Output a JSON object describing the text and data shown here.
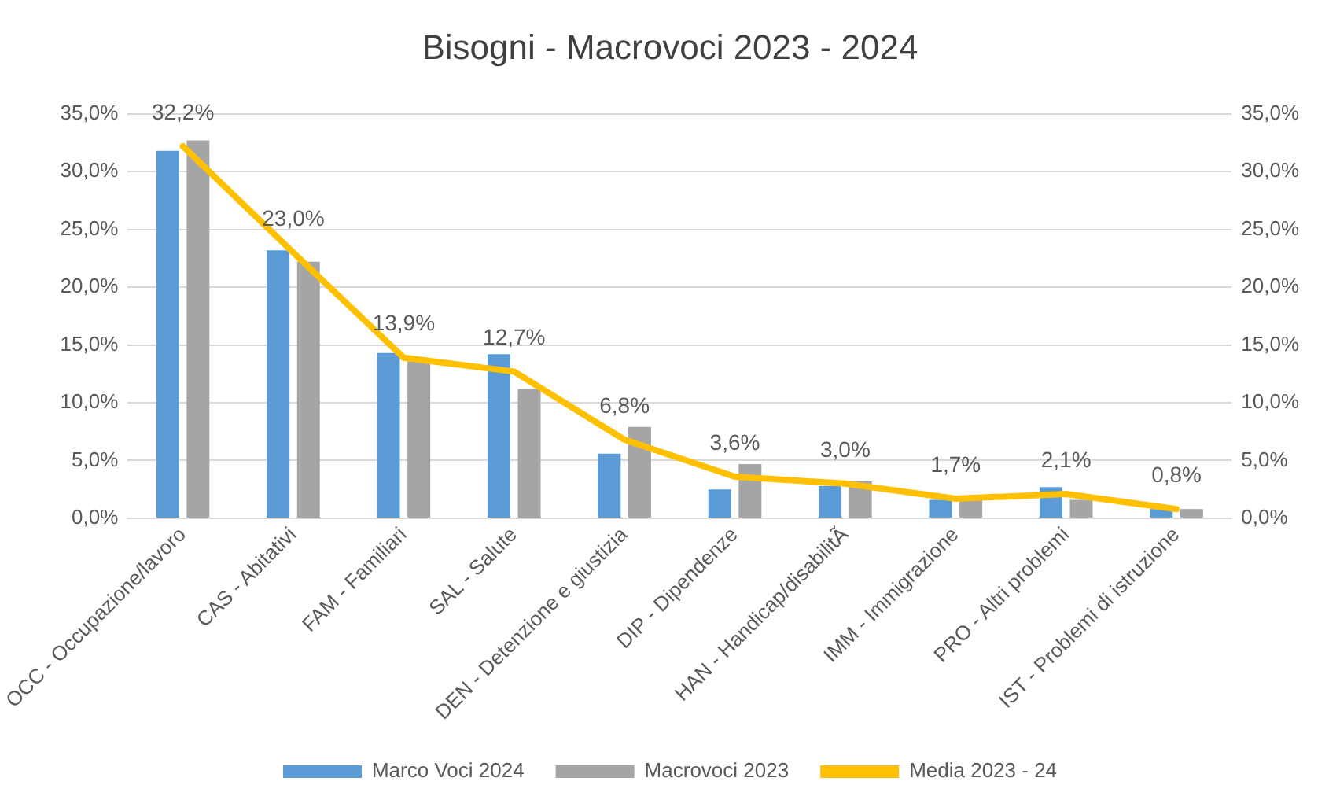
{
  "chart_data": {
    "type": "bar",
    "title": "Bisogni - Macrovoci 2023 - 2024",
    "categories": [
      "OCC - Occupazione/lavoro",
      "CAS - Abitativi",
      "FAM - Familiari",
      "SAL - Salute",
      "DEN - Detenzione e giustizia",
      "DIP - Dipendenze",
      "HAN - Handicap/disabilitÃ",
      "IMM - Immigrazione",
      "PRO - Altri problemi",
      "IST - Problemi di istruzione"
    ],
    "series": [
      {
        "name": "Marco Voci 2024",
        "color": "#5b9bd5",
        "values": [
          31.8,
          23.2,
          14.3,
          14.2,
          5.6,
          2.5,
          2.8,
          1.6,
          2.7,
          0.8
        ]
      },
      {
        "name": "Macrovoci 2023",
        "color": "#a5a5a5",
        "values": [
          32.7,
          22.2,
          13.6,
          11.2,
          7.9,
          4.7,
          3.2,
          1.7,
          1.6,
          0.8
        ]
      },
      {
        "name": "Media 2023 - 24",
        "type": "line",
        "color": "#ffc000",
        "marker": "none",
        "values": [
          32.2,
          23.0,
          13.9,
          12.7,
          6.8,
          3.6,
          3.0,
          1.7,
          2.1,
          0.8
        ],
        "value_labels": [
          "32,2%",
          "23,0%",
          "13,9%",
          "12,7%",
          "6,8%",
          "3,6%",
          "3,0%",
          "1,7%",
          "2,1%",
          "0,8%"
        ]
      }
    ],
    "ylim": [
      0,
      35
    ],
    "yticks": [
      {
        "value": 0,
        "label": "0,0%"
      },
      {
        "value": 5,
        "label": "5,0%"
      },
      {
        "value": 10,
        "label": "10,0%"
      },
      {
        "value": 15,
        "label": "15,0%"
      },
      {
        "value": 20,
        "label": "20,0%"
      },
      {
        "value": 25,
        "label": "25,0%"
      },
      {
        "value": 30,
        "label": "30,0%"
      },
      {
        "value": 35,
        "label": "35,0%"
      }
    ],
    "y2lim": [
      0,
      35
    ],
    "y2ticks": [
      {
        "value": 0,
        "label": "0,0%"
      },
      {
        "value": 5,
        "label": "5,0%"
      },
      {
        "value": 10,
        "label": "10,0%"
      },
      {
        "value": 15,
        "label": "15,0%"
      },
      {
        "value": 20,
        "label": "20,0%"
      },
      {
        "value": 25,
        "label": "25,0%"
      },
      {
        "value": 30,
        "label": "30,0%"
      },
      {
        "value": 35,
        "label": "35,0%"
      }
    ],
    "grid": "y",
    "legend": "bottom"
  }
}
